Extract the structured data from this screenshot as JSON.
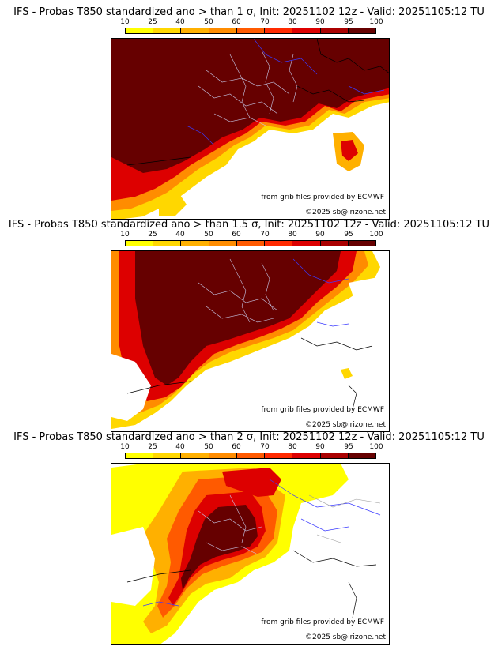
{
  "colorbar": {
    "ticks": [
      "10",
      "25",
      "40",
      "50",
      "60",
      "70",
      "80",
      "90",
      "95",
      "100"
    ],
    "colors": [
      "#ffff00",
      "#ffd700",
      "#ffb000",
      "#ff8c00",
      "#ff5a00",
      "#ff2a00",
      "#dd0000",
      "#aa0000",
      "#660000"
    ]
  },
  "panels": [
    {
      "title": "IFS - Probas T850  standardized ano > than 1 σ, Init: 20251102 12z - Valid: 20251105:12 TU",
      "credit_grib": "from grib files provided by ECMWF",
      "credit_site": "©2025 sb@irizone.net"
    },
    {
      "title": "IFS - Probas T850  standardized ano > than 1.5 σ, Init: 20251102 12z - Valid: 20251105:12 TU",
      "credit_grib": "from grib files provided by ECMWF",
      "credit_site": "©2025 sb@irizone.net"
    },
    {
      "title": "IFS - Probas T850  standardized ano > than 2 σ, Init: 20251102 12z - Valid: 20251105:12 TU",
      "credit_grib": "from grib files provided by ECMWF",
      "credit_site": "©2025 sb@irizone.net"
    }
  ]
}
